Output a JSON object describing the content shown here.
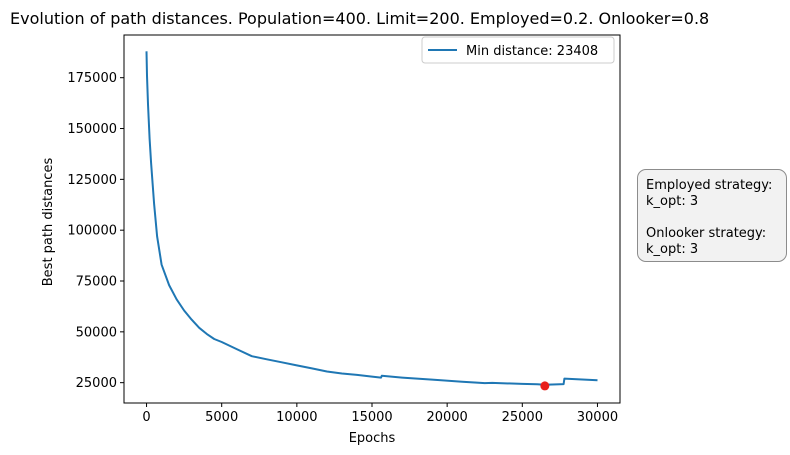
{
  "chart_data": {
    "type": "line",
    "title": "Evolution of path distances. Population=400. Limit=200. Employed=0.2. Onlooker=0.8",
    "xlabel": "Epochs",
    "ylabel": "Best path distances",
    "xlim": [
      -1500,
      31500
    ],
    "ylim": [
      15000,
      196000
    ],
    "xticks": [
      0,
      5000,
      10000,
      15000,
      20000,
      25000,
      30000
    ],
    "yticks": [
      25000,
      50000,
      75000,
      100000,
      125000,
      150000,
      175000
    ],
    "grid": false,
    "legend_position": "upper right",
    "series": [
      {
        "name": "Min distance: 23408",
        "color": "#1f77b4",
        "x": [
          0,
          30,
          100,
          200,
          300,
          500,
          700,
          1000,
          1500,
          2000,
          2500,
          3000,
          3500,
          4000,
          4500,
          5000,
          6000,
          7000,
          8000,
          9000,
          10000,
          11000,
          12000,
          13000,
          14000,
          15000,
          15600,
          15650,
          17000,
          19000,
          21000,
          22500,
          23000,
          25000,
          26000,
          26500,
          27000,
          27750,
          27800,
          30000
        ],
        "y": [
          188000,
          176000,
          162000,
          145000,
          133000,
          113000,
          97000,
          83000,
          73000,
          66000,
          60500,
          56000,
          52000,
          49000,
          46500,
          45000,
          41500,
          38000,
          36500,
          35000,
          33500,
          32000,
          30500,
          29500,
          28800,
          28000,
          27500,
          28400,
          27500,
          26500,
          25500,
          24800,
          24900,
          24400,
          24200,
          24000,
          24100,
          24300,
          27000,
          26200
        ]
      }
    ],
    "marker": {
      "x": 26500,
      "y": 23408,
      "color": "#e8201c"
    }
  },
  "info_box": {
    "employed_title": "Employed strategy:",
    "employed_value": "k_opt: 3",
    "onlooker_title": "Onlooker strategy:",
    "onlooker_value": "k_opt: 3"
  }
}
